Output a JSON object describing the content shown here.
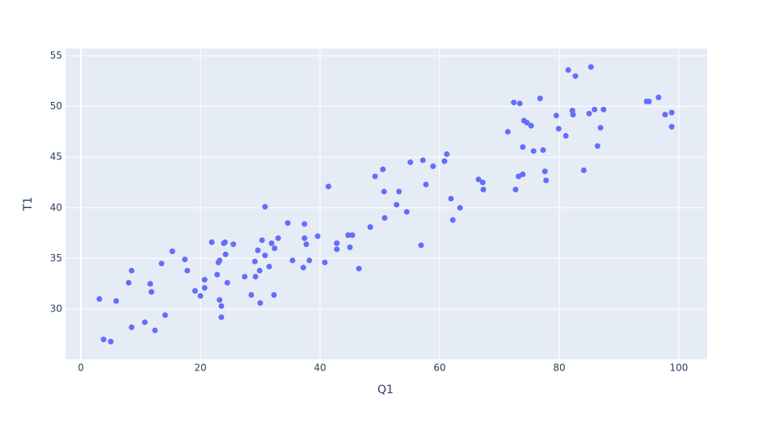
{
  "chart_data": {
    "type": "scatter",
    "x_label": "Q1",
    "y_label": "T1",
    "color": "#636efa",
    "grid": true,
    "xlim": [
      -2.57,
      104.73
    ],
    "ylim": [
      25.05,
      55.72
    ],
    "xticks": [
      0,
      20,
      40,
      60,
      80,
      100
    ],
    "yticks": [
      30,
      35,
      40,
      45,
      50,
      55
    ],
    "x": [
      3.1,
      3.8,
      5.0,
      5.9,
      8.0,
      8.5,
      8.5,
      10.7,
      11.6,
      11.8,
      12.4,
      13.5,
      14.1,
      15.3,
      17.4,
      17.8,
      19.1,
      20.0,
      20.7,
      20.7,
      21.9,
      22.8,
      23.0,
      23.2,
      23.2,
      23.5,
      23.5,
      23.9,
      24.1,
      24.2,
      24.5,
      25.5,
      27.4,
      28.5,
      29.1,
      29.2,
      29.6,
      29.9,
      30.0,
      30.3,
      30.8,
      30.8,
      31.5,
      31.9,
      32.3,
      32.4,
      33.0,
      34.6,
      35.4,
      37.2,
      37.4,
      37.4,
      37.7,
      38.2,
      39.6,
      40.8,
      41.4,
      42.8,
      42.8,
      44.7,
      45.0,
      45.4,
      46.5,
      48.4,
      49.2,
      50.5,
      50.7,
      50.8,
      52.8,
      53.2,
      54.5,
      55.1,
      56.9,
      57.2,
      57.7,
      58.9,
      60.8,
      61.2,
      61.9,
      62.2,
      63.4,
      66.5,
      67.2,
      67.3,
      71.4,
      72.4,
      72.7,
      73.2,
      73.4,
      73.9,
      73.9,
      74.1,
      74.6,
      75.3,
      75.7,
      76.8,
      77.3,
      77.6,
      77.8,
      79.5,
      79.9,
      81.1,
      81.5,
      82.2,
      82.3,
      82.7,
      84.1,
      85.0,
      85.3,
      85.9,
      86.4,
      86.9,
      87.4,
      94.6,
      95.0,
      96.6,
      97.7,
      98.8,
      98.8
    ],
    "values": [
      31.0,
      27.0,
      26.8,
      30.8,
      32.6,
      33.8,
      28.2,
      28.7,
      32.5,
      31.7,
      27.9,
      34.5,
      29.4,
      35.7,
      34.9,
      33.8,
      31.8,
      31.3,
      32.9,
      32.1,
      36.6,
      33.4,
      34.6,
      34.8,
      30.9,
      30.3,
      29.2,
      36.5,
      36.6,
      35.4,
      32.6,
      36.4,
      33.2,
      31.4,
      34.7,
      33.2,
      35.8,
      33.8,
      30.6,
      36.8,
      40.1,
      35.3,
      34.2,
      36.5,
      31.4,
      36.0,
      37.0,
      38.5,
      34.8,
      34.1,
      38.4,
      37.0,
      36.4,
      34.8,
      37.2,
      34.6,
      42.1,
      36.5,
      35.9,
      37.3,
      36.1,
      37.3,
      34.0,
      38.1,
      43.1,
      43.8,
      41.6,
      39.0,
      40.3,
      41.6,
      39.6,
      44.5,
      36.3,
      44.7,
      42.3,
      44.1,
      44.6,
      45.3,
      40.9,
      38.8,
      40.0,
      42.8,
      42.5,
      41.8,
      47.5,
      50.4,
      41.8,
      43.1,
      50.3,
      46.0,
      43.3,
      48.6,
      48.4,
      48.1,
      45.6,
      50.8,
      45.7,
      43.6,
      42.7,
      49.1,
      47.8,
      47.1,
      53.6,
      49.6,
      49.2,
      53.0,
      43.7,
      49.3,
      53.9,
      49.7,
      46.1,
      47.9,
      49.7,
      50.5,
      50.5,
      50.9,
      49.2,
      49.4,
      48.0
    ]
  }
}
